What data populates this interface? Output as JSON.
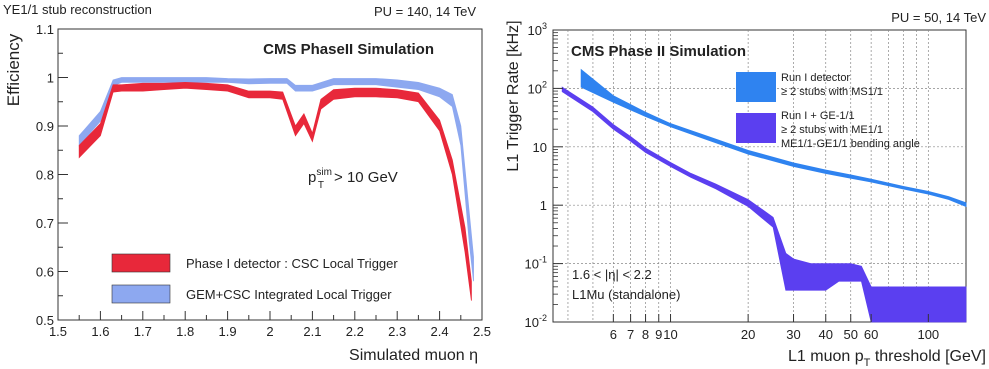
{
  "chart_data": [
    {
      "type": "area",
      "header_left": "YE1/1 stub reconstruction",
      "header_right": "PU = 140, 14 TeV",
      "title": "CMS PhaseII Simulation",
      "xlabel": "Simulated muon η",
      "ylabel": "Efficiency",
      "xlim": [
        1.5,
        2.5
      ],
      "ylim": [
        0.5,
        1.1
      ],
      "x_ticks": [
        "1.5",
        "1.6",
        "1.7",
        "1.8",
        "1.9",
        "2",
        "2.1",
        "2.2",
        "2.3",
        "2.4",
        "2.5"
      ],
      "y_ticks": [
        "0.5",
        "0.6",
        "0.7",
        "0.8",
        "0.9",
        "1",
        "1.1"
      ],
      "annotation": {
        "base": "p",
        "sup": "sim",
        "sub": "T",
        "rest": "> 10 GeV"
      },
      "legend_placement": "bottom-left",
      "series": [
        {
          "name": "Phase I detector : CSC Local Trigger",
          "color": "#e8283a",
          "x": [
            1.55,
            1.6,
            1.63,
            1.65,
            1.7,
            1.75,
            1.8,
            1.85,
            1.9,
            1.95,
            2.0,
            2.03,
            2.06,
            2.08,
            2.1,
            2.12,
            2.15,
            2.2,
            2.25,
            2.3,
            2.35,
            2.4,
            2.43,
            2.46,
            2.475
          ],
          "low": [
            0.835,
            0.88,
            0.97,
            0.972,
            0.972,
            0.975,
            0.978,
            0.975,
            0.972,
            0.958,
            0.958,
            0.955,
            0.88,
            0.905,
            0.868,
            0.935,
            0.955,
            0.96,
            0.96,
            0.958,
            0.95,
            0.89,
            0.8,
            0.64,
            0.54
          ],
          "high": [
            0.86,
            0.905,
            0.985,
            0.985,
            0.988,
            0.988,
            0.99,
            0.988,
            0.985,
            0.972,
            0.972,
            0.97,
            0.9,
            0.925,
            0.885,
            0.955,
            0.975,
            0.978,
            0.978,
            0.975,
            0.968,
            0.912,
            0.83,
            0.69,
            0.58
          ]
        },
        {
          "name": "GEM+CSC Integrated Local Trigger",
          "color": "#8da8f0",
          "x": [
            1.55,
            1.6,
            1.63,
            1.65,
            1.7,
            1.75,
            1.8,
            1.85,
            1.9,
            1.95,
            2.0,
            2.04,
            2.06,
            2.1,
            2.15,
            2.2,
            2.25,
            2.3,
            2.35,
            2.4,
            2.43,
            2.45,
            2.47,
            2.48
          ],
          "low": [
            0.86,
            0.91,
            0.983,
            0.99,
            0.99,
            0.99,
            0.99,
            0.99,
            0.99,
            0.987,
            0.988,
            0.988,
            0.972,
            0.972,
            0.985,
            0.985,
            0.985,
            0.98,
            0.975,
            0.96,
            0.94,
            0.86,
            0.66,
            0.58
          ],
          "high": [
            0.88,
            0.93,
            0.995,
            1.0,
            1.0,
            1.0,
            1.0,
            1.0,
            0.998,
            0.997,
            0.998,
            0.998,
            0.984,
            0.984,
            0.998,
            0.998,
            0.998,
            0.995,
            0.99,
            0.978,
            0.965,
            0.9,
            0.72,
            0.63
          ]
        }
      ]
    },
    {
      "type": "area",
      "header_right": "PU = 50, 14 TeV",
      "title": "CMS Phase II Simulation",
      "xlabel": "L1 muon p",
      "xlabel_sub": "T",
      "xlabel_rest": " threshold [GeV]",
      "ylabel": "L1 Trigger Rate [kHz]",
      "x_scale": "log",
      "y_scale": "log",
      "xlim": [
        3.5,
        140
      ],
      "ylim": [
        0.01,
        1000
      ],
      "x_ticks": [
        6,
        7,
        8,
        9,
        10,
        20,
        30,
        40,
        50,
        60,
        100
      ],
      "x_tick_labels": [
        "6",
        "7",
        "8",
        "9",
        "10",
        "20",
        "30",
        "40",
        "50",
        "60",
        "100"
      ],
      "y_ticks": [
        0.01,
        0.1,
        1,
        10,
        100,
        1000
      ],
      "y_tick_labels": [
        {
          "base": "10",
          "sup": "-2"
        },
        {
          "base": "10",
          "sup": "-1"
        },
        {
          "base": "1",
          "sup": ""
        },
        {
          "base": "10",
          "sup": ""
        },
        {
          "base": "10",
          "sup": "2"
        },
        {
          "base": "10",
          "sup": "3"
        }
      ],
      "grid": true,
      "annotation_lines": [
        "1.6 < |η| < 2.2",
        "L1Mu (standalone)"
      ],
      "legend_placement": "top-right",
      "series": [
        {
          "name": "Run I detector",
          "legend_lines": [
            "Run I detector",
            "≥ 2 stubs with MS1/1"
          ],
          "color": "#2f83f0",
          "x": [
            4.5,
            6,
            8,
            10,
            14,
            20,
            30,
            40,
            50,
            60,
            80,
            100,
            120,
            140
          ],
          "low": [
            105,
            58,
            33,
            22,
            13,
            7.5,
            4.6,
            3.5,
            2.9,
            2.5,
            1.9,
            1.55,
            1.25,
            0.95
          ],
          "high": [
            210,
            75,
            39,
            25,
            15,
            8.7,
            5.3,
            4.0,
            3.3,
            2.8,
            2.1,
            1.72,
            1.4,
            1.1
          ]
        },
        {
          "name": "Run I + GE-1/1",
          "legend_lines": [
            "Run I + GE-1/1",
            "≥ 2 stubs with ME1/1",
            "ME1/1-GE1/1 bending angle"
          ],
          "color": "#5b3ff0",
          "x": [
            3.8,
            5,
            6,
            7,
            8,
            10,
            12,
            15,
            20,
            25,
            28,
            30,
            35,
            40,
            45,
            50,
            55,
            60,
            70,
            100,
            140
          ],
          "low": [
            88,
            40,
            20,
            12.5,
            8,
            4.6,
            3.0,
            1.9,
            0.95,
            0.42,
            0.035,
            0.035,
            0.035,
            0.035,
            0.05,
            0.05,
            0.05,
            0.01,
            0.01,
            0.01,
            0.01
          ],
          "high": [
            105,
            48,
            24,
            15,
            9.5,
            5.4,
            3.5,
            2.3,
            1.25,
            0.62,
            0.15,
            0.12,
            0.1,
            0.1,
            0.1,
            0.1,
            0.09,
            0.04,
            0.04,
            0.04,
            0.04
          ]
        }
      ]
    }
  ]
}
